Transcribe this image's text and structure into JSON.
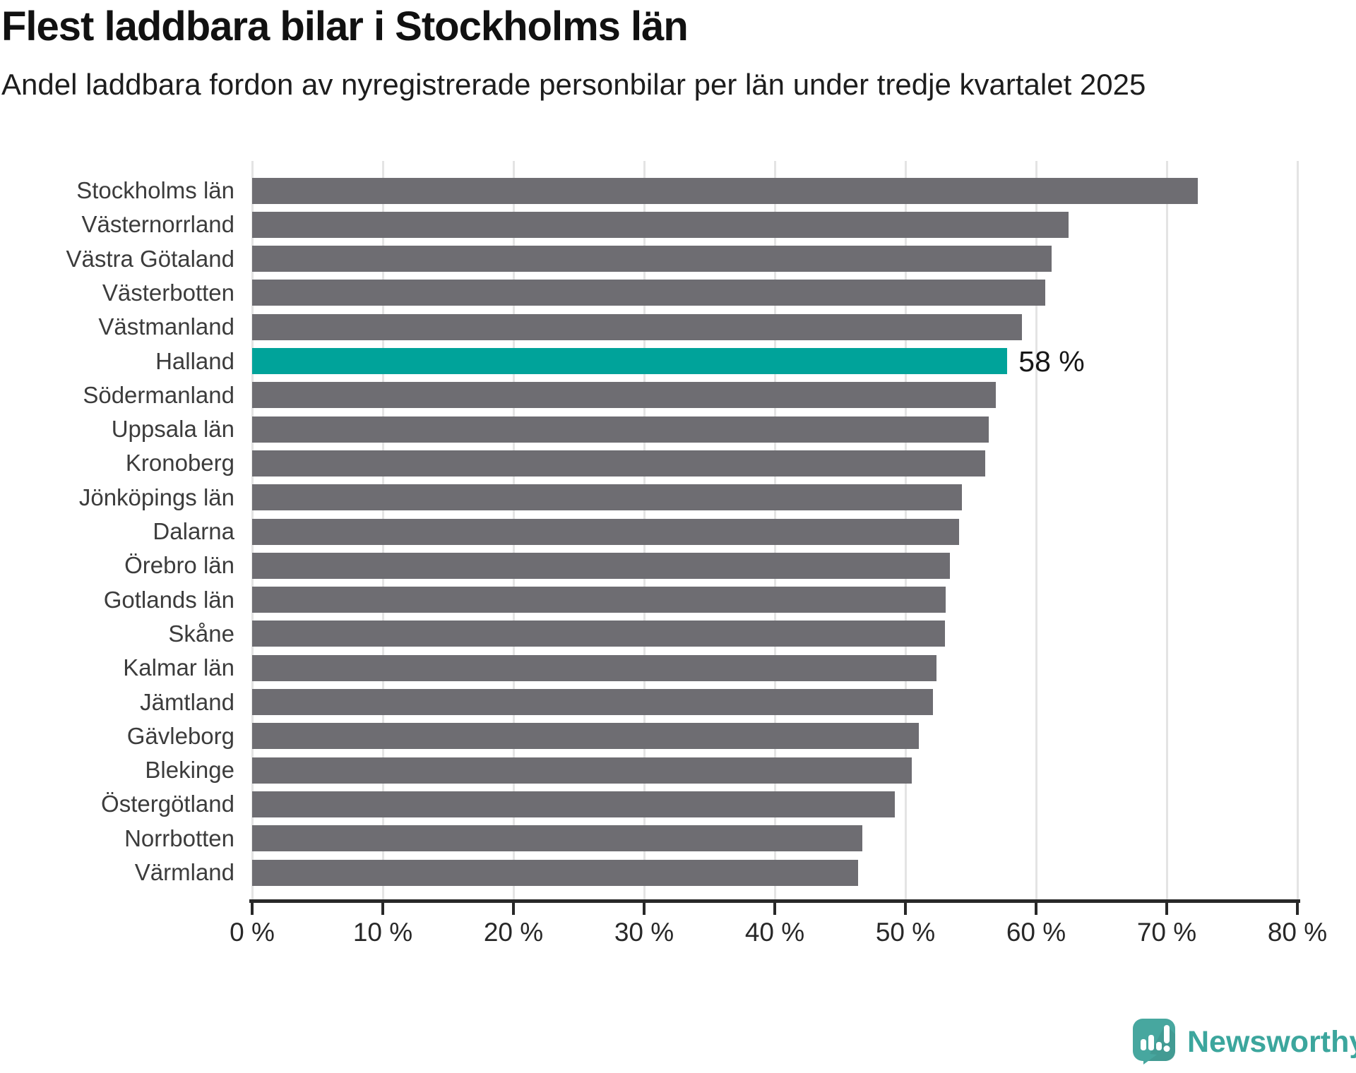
{
  "header": {
    "title": "Flest laddbara bilar i Stockholms län",
    "subtitle": "Andel laddbara fordon av nyregistrerade personbilar per län under tredje kvartalet 2025"
  },
  "chart_data": {
    "type": "bar",
    "orientation": "horizontal",
    "title": "Flest laddbara bilar i Stockholms län",
    "subtitle": "Andel laddbara fordon av nyregistrerade personbilar per län under tredje kvartalet 2025",
    "categories": [
      "Stockholms län",
      "Västernorrland",
      "Västra Götaland",
      "Västerbotten",
      "Västmanland",
      "Halland",
      "Södermanland",
      "Uppsala län",
      "Kronoberg",
      "Jönköpings län",
      "Dalarna",
      "Örebro län",
      "Gotlands län",
      "Skåne",
      "Kalmar län",
      "Jämtland",
      "Gävleborg",
      "Blekinge",
      "Östergötland",
      "Norrbotten",
      "Värmland"
    ],
    "values": [
      72.4,
      62.5,
      61.2,
      60.7,
      58.9,
      57.8,
      56.9,
      56.4,
      56.1,
      54.3,
      54.1,
      53.4,
      53.1,
      53.0,
      52.4,
      52.1,
      51.0,
      50.5,
      49.2,
      46.7,
      46.4
    ],
    "unit": "%",
    "xlabel": "",
    "ylabel": "",
    "xlim": [
      0,
      80
    ],
    "x_ticks": [
      0,
      10,
      20,
      30,
      40,
      50,
      60,
      70,
      80
    ],
    "x_tick_labels": [
      "0 %",
      "10 %",
      "20 %",
      "30 %",
      "40 %",
      "50 %",
      "60 %",
      "70 %",
      "80 %"
    ],
    "grid": true,
    "legend": false,
    "highlight": {
      "category": "Halland",
      "label": "58 %",
      "color": "#00a39a"
    },
    "bar_color": "#6e6d72"
  },
  "colors": {
    "bar_default": "#6e6d72",
    "bar_highlight": "#00a39a",
    "gridline": "#e4e4e4",
    "axis": "#282828",
    "title_text": "#111111",
    "subtitle_text": "#1d1d1d",
    "category_text": "#3c3c3c",
    "logo_teal": "#47a79f"
  },
  "footer": {
    "brand": "Newsworthy"
  }
}
